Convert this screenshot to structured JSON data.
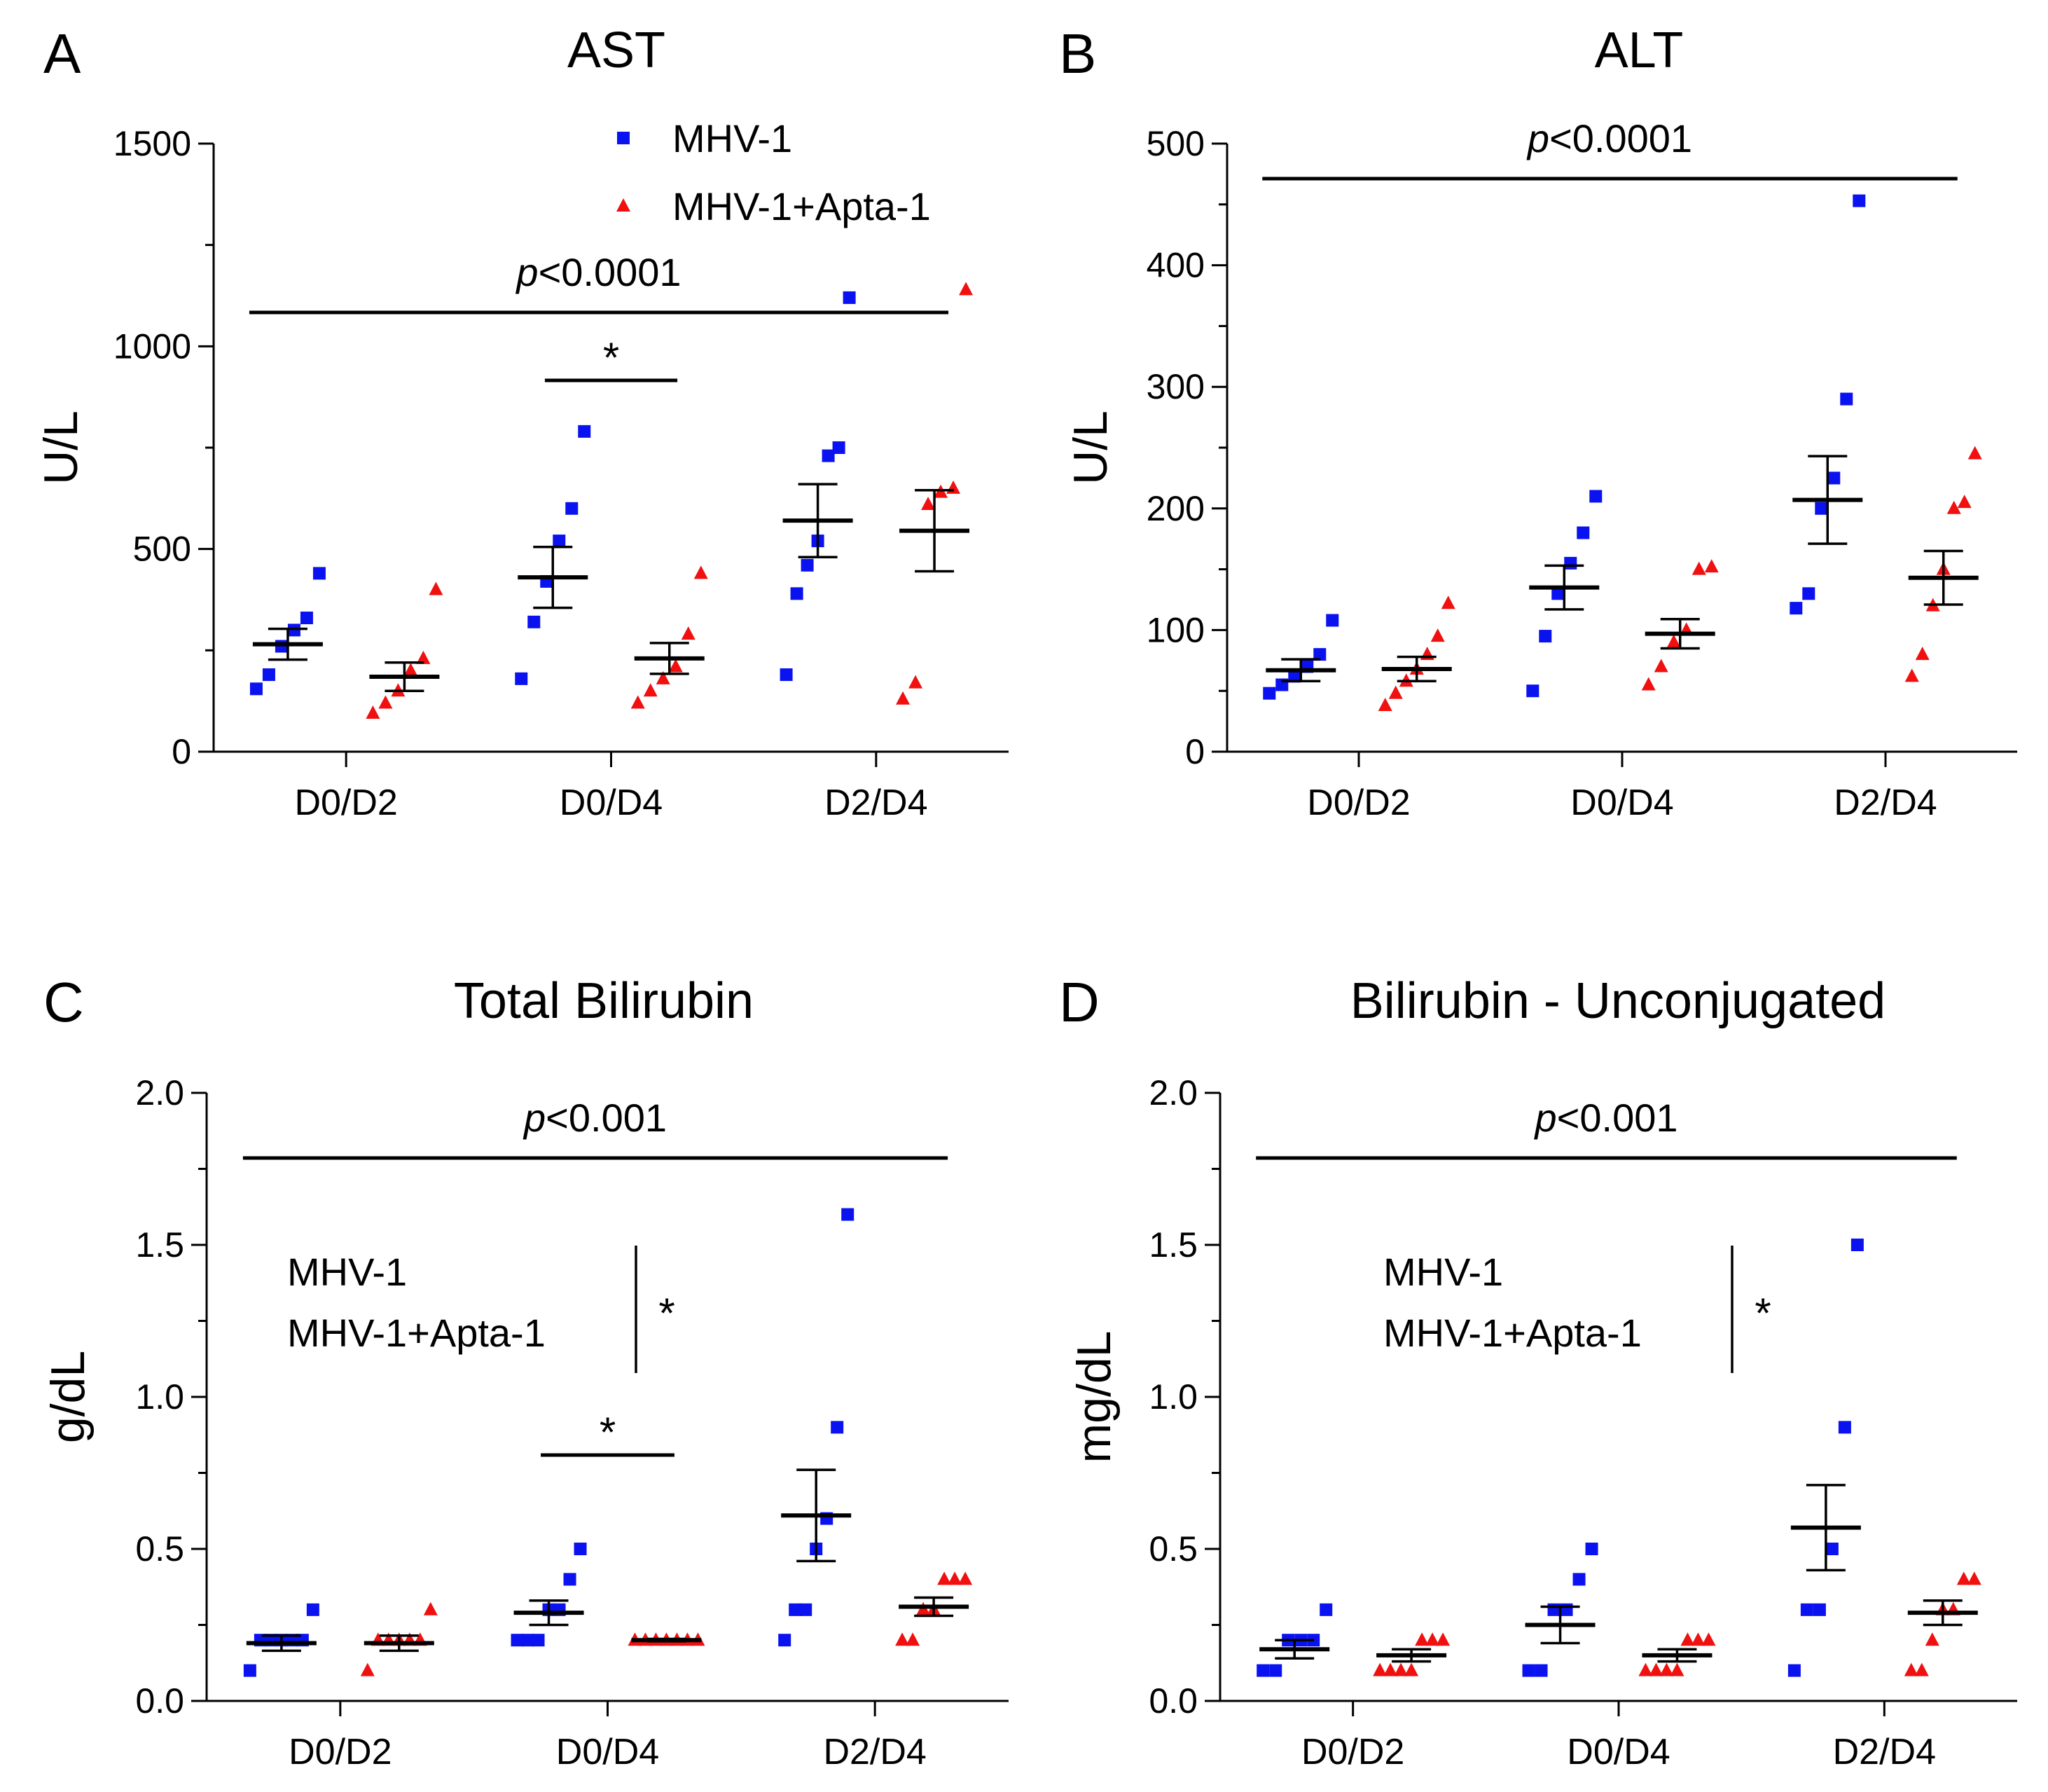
{
  "legend": {
    "series1": "MHV-1",
    "series2": "MHV-1+Apta-1",
    "color1": "#0a12f0",
    "color2": "#f01010"
  },
  "chart_data": [
    {
      "letter": "A",
      "title": "AST",
      "ylabel": "U/L",
      "type": "scatter",
      "categories": [
        "D0/D2",
        "D0/D4",
        "D2/D4"
      ],
      "yticks": [
        "0",
        "500",
        "1000",
        "1500"
      ],
      "ylim": [
        0,
        1500
      ],
      "series": [
        {
          "name": "MHV-1",
          "points": [
            [
              155,
              190,
              260,
              300,
              330,
              440
            ],
            [
              180,
              320,
              420,
              520,
              600,
              790
            ],
            [
              190,
              390,
              460,
              520,
              730,
              750,
              1120
            ]
          ],
          "mean": [
            265,
            430,
            570
          ],
          "sem": [
            38,
            75,
            90
          ]
        },
        {
          "name": "MHV-1+Apta-1",
          "points": [
            [
              95,
              120,
              150,
              200,
              230,
              400
            ],
            [
              120,
              150,
              180,
              210,
              290,
              440
            ],
            [
              130,
              170,
              610,
              640,
              650,
              1140
            ]
          ],
          "mean": [
            185,
            230,
            545
          ],
          "sem": [
            35,
            38,
            100
          ]
        }
      ],
      "significance": [
        {
          "text": "p<0.0001",
          "prefix": "p",
          "value": "<0.0001",
          "from": 0,
          "to": 2
        },
        {
          "text": "*",
          "from": 1,
          "to": 1
        }
      ],
      "legend_shown": true
    },
    {
      "letter": "B",
      "title": "ALT",
      "ylabel": "U/L",
      "type": "scatter",
      "categories": [
        "D0/D2",
        "D0/D4",
        "D2/D4"
      ],
      "yticks": [
        "0",
        "100",
        "200",
        "300",
        "400",
        "500"
      ],
      "ylim": [
        0,
        500
      ],
      "series": [
        {
          "name": "MHV-1",
          "points": [
            [
              48,
              55,
              62,
              70,
              80,
              108
            ],
            [
              50,
              95,
              130,
              155,
              180,
              210
            ],
            [
              118,
              130,
              200,
              225,
              290,
              453
            ]
          ],
          "mean": [
            67,
            135,
            207
          ],
          "sem": [
            9,
            18,
            36
          ]
        },
        {
          "name": "MHV-1+Apta-1",
          "points": [
            [
              38,
              48,
              58,
              68,
              80,
              95,
              122
            ],
            [
              55,
              70,
              90,
              100,
              150,
              152
            ],
            [
              62,
              80,
              120,
              150,
              200,
              205,
              245
            ]
          ],
          "mean": [
            68,
            97,
            143
          ],
          "sem": [
            10,
            12,
            22
          ]
        }
      ],
      "significance": [
        {
          "text": "p<0.0001",
          "prefix": "p",
          "value": "<0.0001",
          "from": 0,
          "to": 2
        }
      ],
      "legend_shown": false
    },
    {
      "letter": "C",
      "title": "Total Bilirubin",
      "ylabel": "g/dL",
      "type": "scatter",
      "categories": [
        "D0/D2",
        "D0/D4",
        "D2/D4"
      ],
      "yticks": [
        "0.0",
        "0.5",
        "1.0",
        "1.5",
        "2.0"
      ],
      "ylim": [
        0,
        2
      ],
      "series": [
        {
          "name": "MHV-1",
          "points": [
            [
              0.1,
              0.2,
              0.2,
              0.2,
              0.2,
              0.2,
              0.3
            ],
            [
              0.2,
              0.2,
              0.2,
              0.3,
              0.3,
              0.4,
              0.5
            ],
            [
              0.2,
              0.3,
              0.3,
              0.5,
              0.6,
              0.9,
              1.6
            ]
          ],
          "mean": [
            0.19,
            0.29,
            0.61
          ],
          "sem": [
            0.025,
            0.04,
            0.15
          ]
        },
        {
          "name": "MHV-1+Apta-1",
          "points": [
            [
              0.1,
              0.2,
              0.2,
              0.2,
              0.2,
              0.2,
              0.3
            ],
            [
              0.2,
              0.2,
              0.2,
              0.2,
              0.2,
              0.2,
              0.2
            ],
            [
              0.2,
              0.2,
              0.3,
              0.3,
              0.4,
              0.4,
              0.4
            ]
          ],
          "mean": [
            0.19,
            0.2,
            0.31
          ],
          "sem": [
            0.025,
            0.004,
            0.03
          ]
        }
      ],
      "significance": [
        {
          "text": "p<0.001",
          "prefix": "p",
          "value": "<0.001",
          "from": 0,
          "to": 2
        },
        {
          "text": "*",
          "from": 1,
          "to": 1
        }
      ],
      "inset_text": [
        "MHV-1",
        "MHV-1+Apta-1"
      ],
      "inset_star": "*",
      "legend_shown": false
    },
    {
      "letter": "D",
      "title": "Bilirubin - Unconjugated",
      "ylabel": "mg/dL",
      "type": "scatter",
      "categories": [
        "D0/D2",
        "D0/D4",
        "D2/D4"
      ],
      "yticks": [
        "0.0",
        "0.5",
        "1.0",
        "1.5",
        "2.0"
      ],
      "ylim": [
        0,
        2
      ],
      "series": [
        {
          "name": "MHV-1",
          "points": [
            [
              0.1,
              0.1,
              0.2,
              0.2,
              0.2,
              0.3
            ],
            [
              0.1,
              0.1,
              0.3,
              0.3,
              0.4,
              0.5
            ],
            [
              0.1,
              0.3,
              0.3,
              0.5,
              0.9,
              1.5
            ]
          ],
          "mean": [
            0.17,
            0.25,
            0.57
          ],
          "sem": [
            0.03,
            0.06,
            0.14
          ]
        },
        {
          "name": "MHV-1+Apta-1",
          "points": [
            [
              0.1,
              0.1,
              0.1,
              0.1,
              0.2,
              0.2,
              0.2
            ],
            [
              0.1,
              0.1,
              0.1,
              0.1,
              0.2,
              0.2,
              0.2
            ],
            [
              0.1,
              0.1,
              0.2,
              0.3,
              0.3,
              0.4,
              0.4
            ]
          ],
          "mean": [
            0.15,
            0.15,
            0.29
          ],
          "sem": [
            0.02,
            0.02,
            0.04
          ]
        }
      ],
      "significance": [
        {
          "text": "p<0.001",
          "prefix": "p",
          "value": "<0.001",
          "from": 0,
          "to": 2
        }
      ],
      "inset_text": [
        "MHV-1",
        "MHV-1+Apta-1"
      ],
      "inset_star": "*",
      "legend_shown": false
    }
  ]
}
